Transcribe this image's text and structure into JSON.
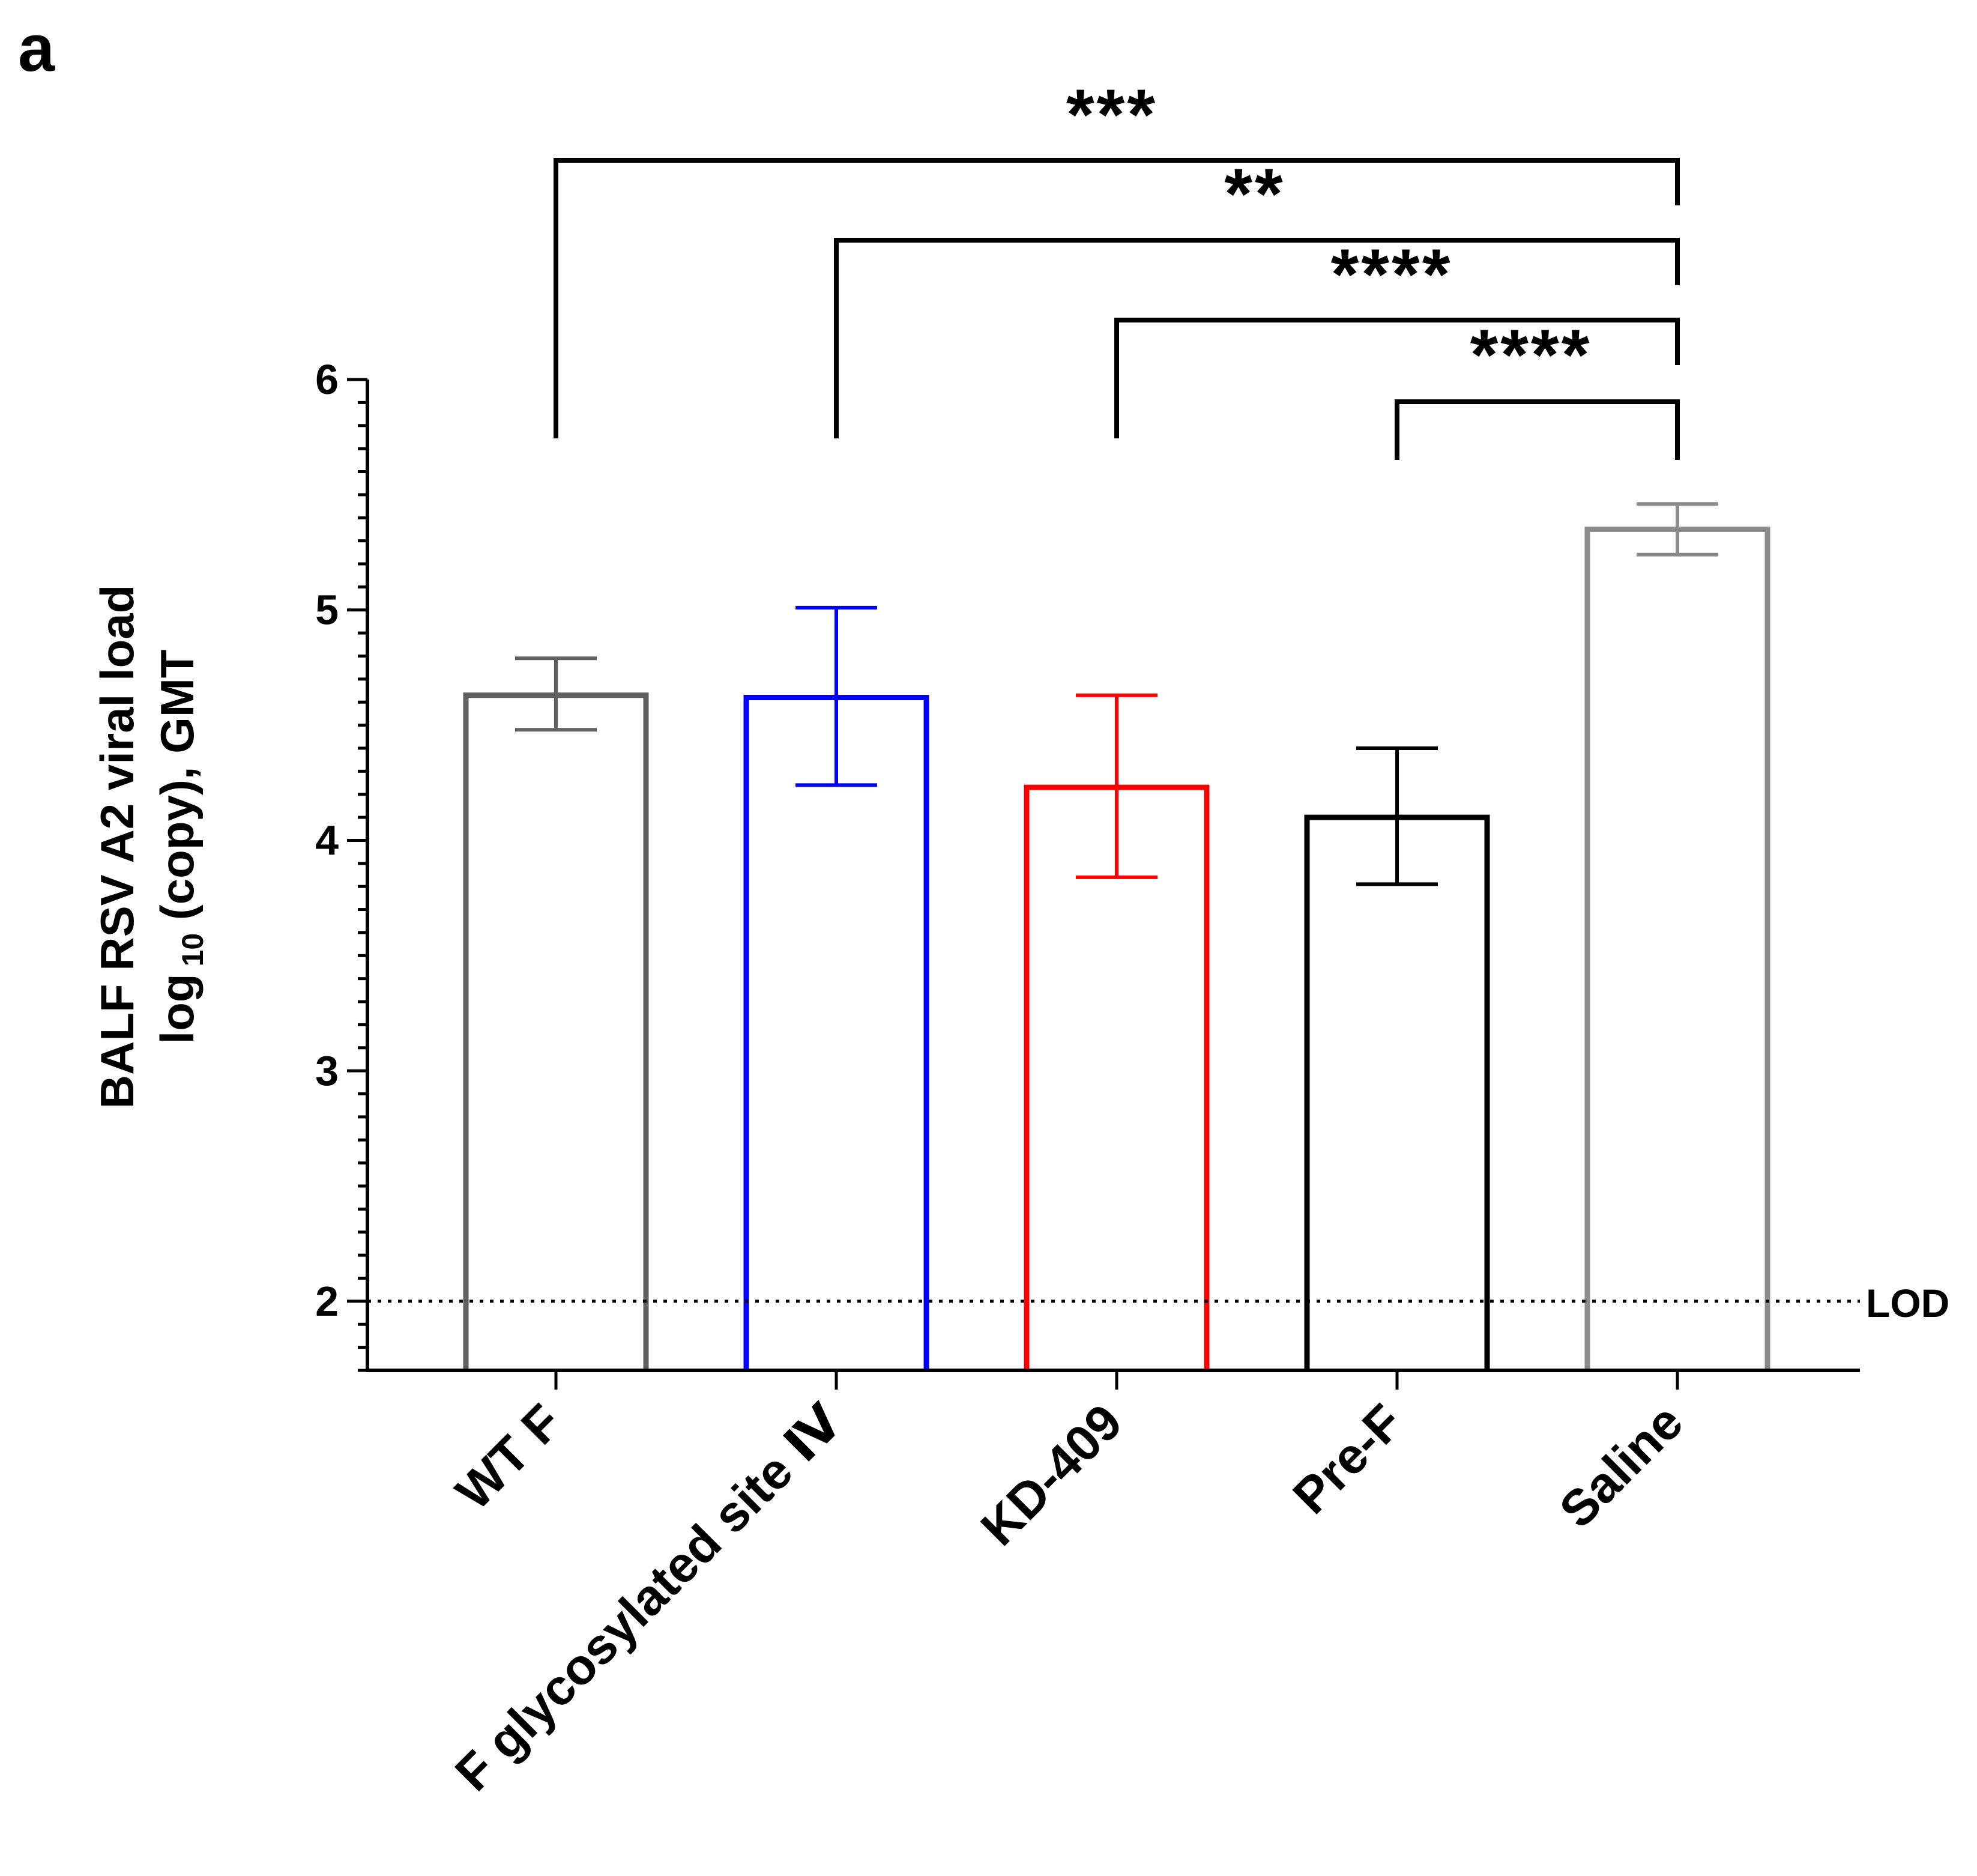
{
  "panel_label": "a",
  "chart_data": {
    "type": "bar",
    "title": "",
    "ylabel_line1": "BALF RSV A2 viral load",
    "ylabel_line2_pre": "log",
    "ylabel_line2_sub": "10",
    "ylabel_line2_post": " (copy), GMT",
    "xlabel": "",
    "ylim": [
      1.7,
      6.0
    ],
    "yticks": [
      2,
      3,
      4,
      5,
      6
    ],
    "categories": [
      "WT F",
      "F glycosylated site Ⅳ",
      "KD-409",
      "Pre-F",
      "Saline"
    ],
    "values": [
      4.63,
      4.62,
      4.23,
      4.1,
      5.35
    ],
    "errors_low": [
      4.48,
      4.24,
      3.84,
      3.81,
      5.24
    ],
    "errors_high": [
      4.79,
      5.01,
      4.63,
      4.4,
      5.46
    ],
    "colors": [
      "#616161",
      "#0000ff",
      "#ff0000",
      "#000000",
      "#8c8c8c"
    ],
    "bar_style": "hollow",
    "reference_line": {
      "value": 2,
      "label": "LOD",
      "style": "dotted"
    },
    "significance": [
      {
        "from": "WT F",
        "to": "Saline",
        "label": "***"
      },
      {
        "from": "F glycosylated site Ⅳ",
        "to": "Saline",
        "label": "**"
      },
      {
        "from": "KD-409",
        "to": "Saline",
        "label": "****"
      },
      {
        "from": "Pre-F",
        "to": "Saline",
        "label": "****"
      }
    ]
  }
}
